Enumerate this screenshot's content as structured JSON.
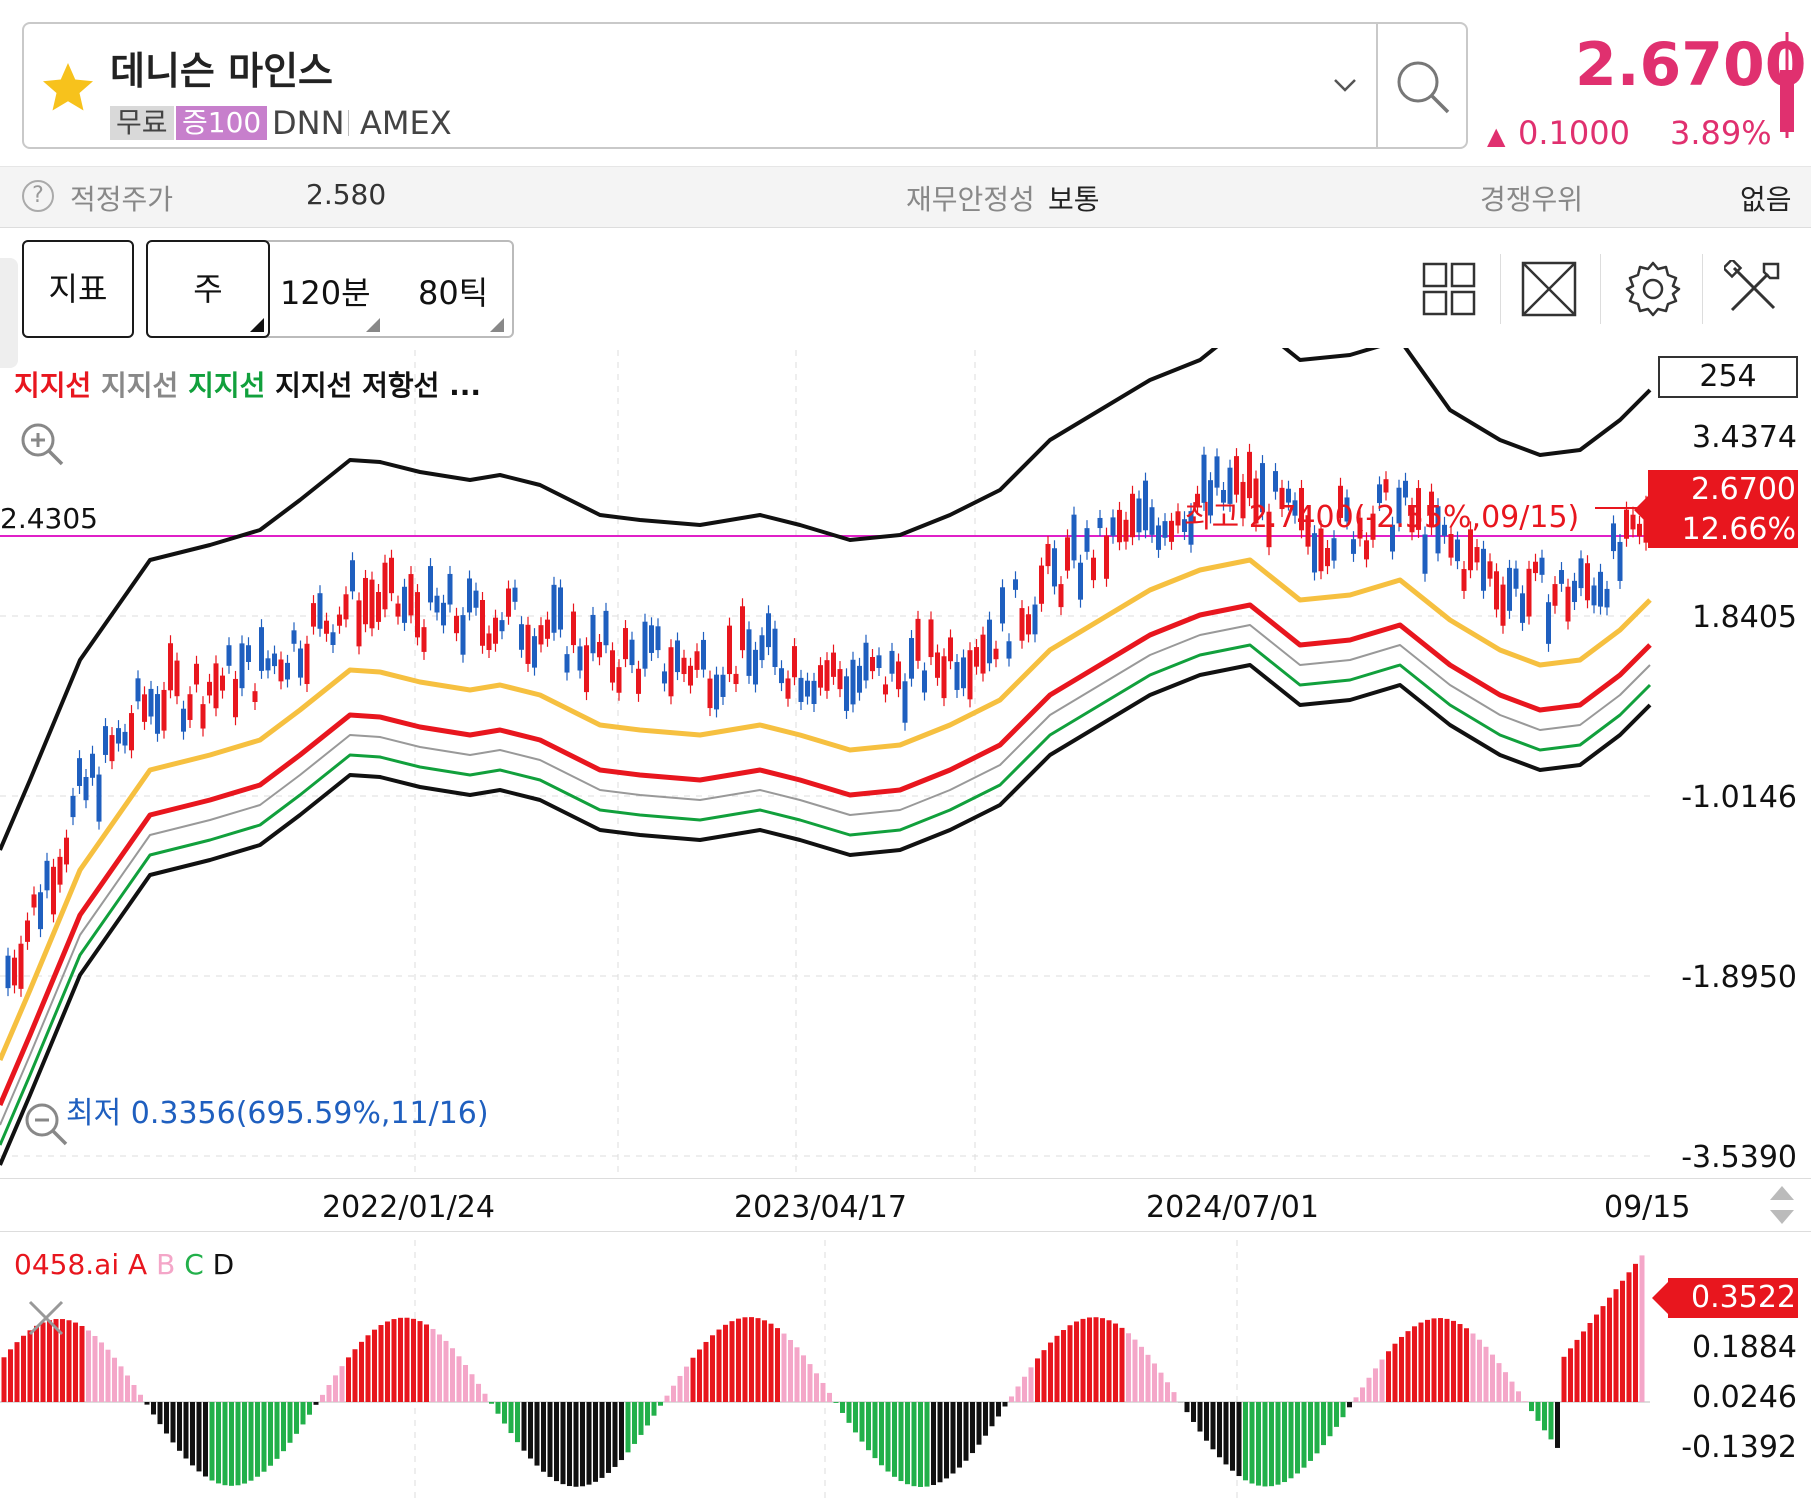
{
  "header": {
    "stock_name": "데니슨 마인스",
    "tag_free": "무료",
    "tag_margin": "증100",
    "ticker": "DNN",
    "exchange": "AMEX",
    "price": "2.6700",
    "change_value": "0.1000",
    "change_pct": "3.89%",
    "up_color": "#e0306f"
  },
  "info": {
    "fair_price_label": "적정주가",
    "fair_price_value": "2.580",
    "financial_label": "재무안정성",
    "financial_value": "보통",
    "competitive_label": "경쟁우위",
    "competitive_value": "없음"
  },
  "toolbar": {
    "indicator": "지표",
    "week": "주",
    "min120": "120분",
    "tick80": "80틱"
  },
  "chart": {
    "legend": [
      {
        "text": "지지선",
        "color": "#e8161e"
      },
      {
        "text": "지지선",
        "color": "#888888"
      },
      {
        "text": "지지선",
        "color": "#11a03c"
      },
      {
        "text": "지지선",
        "color": "#111111"
      },
      {
        "text": "저항선",
        "color": "#111111"
      },
      {
        "text": "...",
        "color": "#111111"
      }
    ],
    "count": "254",
    "y_labels": [
      "3.4374",
      "1.8405",
      "-1.0146",
      "-1.8950",
      "-3.5390"
    ],
    "hline_label": "2.4305",
    "high_annotation": "최고 2.7400(-2.55%,09/15)",
    "low_annotation": "최저 0.3356(695.59%,11/16)",
    "price_tag": "2.6700",
    "price_tag_pct": "12.66%",
    "x_labels": [
      "2022/01/24",
      "2023/04/17",
      "2024/07/01",
      "09/15"
    ]
  },
  "indicator": {
    "name": "0458.ai",
    "legend": [
      {
        "text": "A",
        "color": "#e8161e"
      },
      {
        "text": "B",
        "color": "#f4a6c8"
      },
      {
        "text": "C",
        "color": "#22b04a"
      },
      {
        "text": "D",
        "color": "#111111"
      }
    ],
    "y_labels": [
      "0.1884",
      "0.0246",
      "-0.1392"
    ],
    "value_tag": "0.3522"
  }
}
